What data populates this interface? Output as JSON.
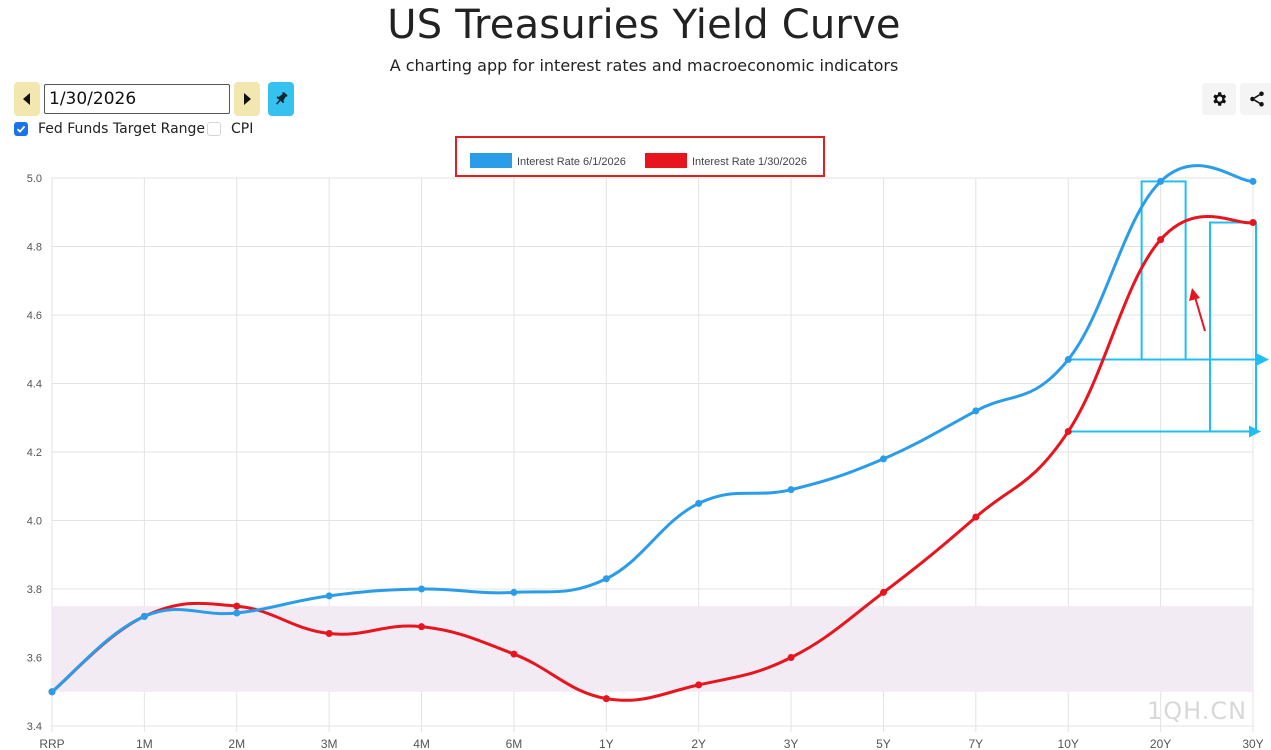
{
  "header": {
    "title": "US Treasuries Yield Curve",
    "subtitle": "A charting app for interest rates and macroeconomic indicators"
  },
  "controls": {
    "date_value": "1/30/2026",
    "prev_icon": "caret-left-icon",
    "next_icon": "caret-right-icon",
    "pin_icon": "pin-icon",
    "settings_icon": "gear-icon",
    "share_icon": "share-icon",
    "checkboxes": [
      {
        "label": "Fed Funds Target Range",
        "checked": true
      },
      {
        "label": "CPI",
        "checked": false
      }
    ]
  },
  "colors": {
    "series_blue": "#2b9de8",
    "series_red": "#e8141e",
    "fed_band": "#f3ebf3",
    "legend_box": "#e02020",
    "annotation_cyan": "#1fc0f0",
    "accent": "#1a73e8"
  },
  "chart_data": {
    "type": "line",
    "categories": [
      "RRP",
      "1M",
      "2M",
      "3M",
      "4M",
      "6M",
      "1Y",
      "2Y",
      "3Y",
      "5Y",
      "7Y",
      "10Y",
      "20Y",
      "30Y"
    ],
    "series": [
      {
        "name": "Interest Rate 6/1/2026",
        "color": "#2b9de8",
        "values": [
          3.5,
          3.72,
          3.73,
          3.78,
          3.8,
          3.79,
          3.83,
          4.05,
          4.09,
          4.18,
          4.32,
          4.47,
          4.99,
          4.99
        ]
      },
      {
        "name": "Interest Rate 1/30/2026",
        "color": "#e8141e",
        "values": [
          3.5,
          3.72,
          3.75,
          3.67,
          3.69,
          3.61,
          3.48,
          3.52,
          3.6,
          3.79,
          4.01,
          4.26,
          4.82,
          4.87
        ]
      }
    ],
    "ylim": [
      3.4,
      5.0
    ],
    "yticks": [
      "3.4",
      "3.6",
      "3.8",
      "4.0",
      "4.2",
      "4.4",
      "4.6",
      "4.8",
      "5.0"
    ],
    "fed_funds_range": [
      3.5,
      3.75
    ],
    "grid": true,
    "legend_position": "top-center",
    "annotations": [
      {
        "type": "arrow",
        "from_category": "10Y",
        "to_category": "30Y",
        "value": 4.47
      },
      {
        "type": "arrow",
        "from_category": "10Y",
        "to_category": "30Y",
        "value": 4.26
      }
    ]
  },
  "watermark": "1QH.CN"
}
